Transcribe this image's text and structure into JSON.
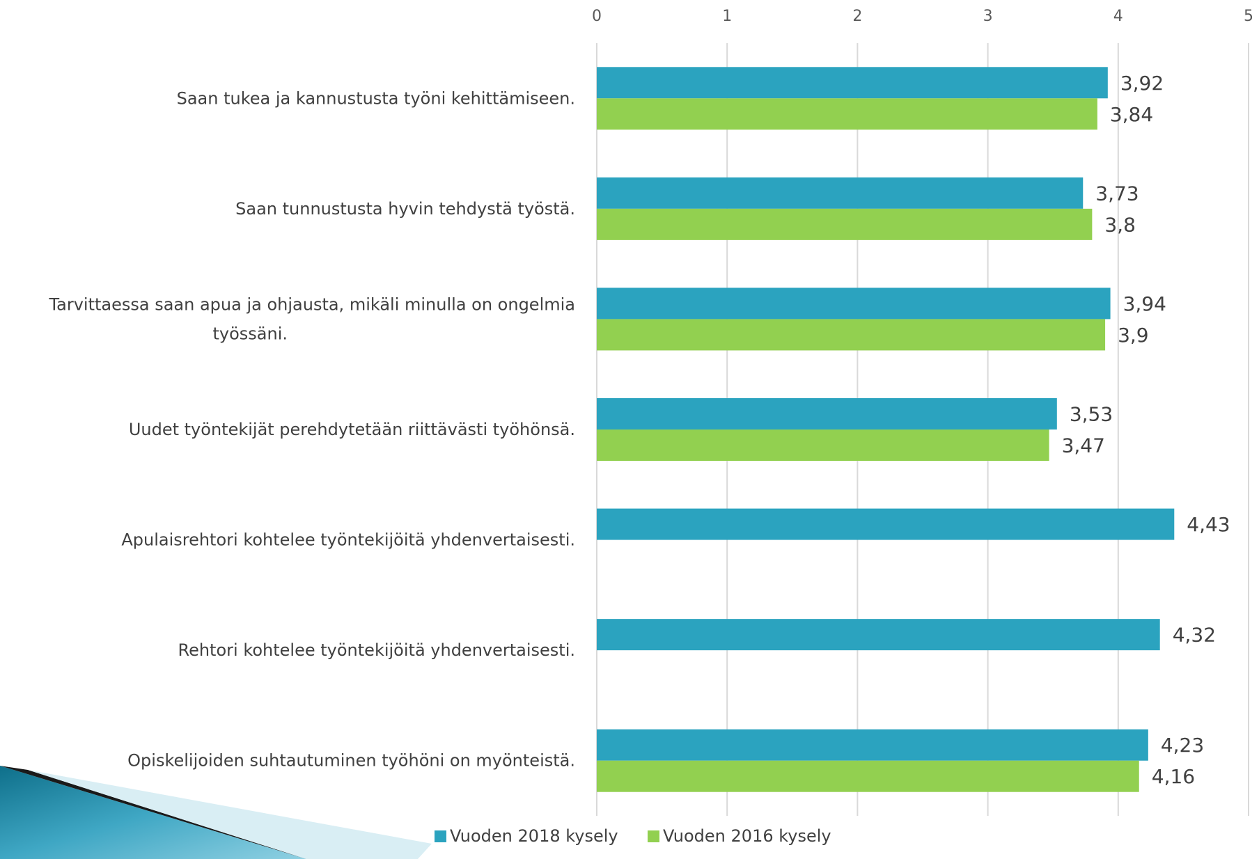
{
  "chart_data": {
    "type": "bar",
    "orientation": "horizontal",
    "title": "",
    "xlim": [
      0,
      5
    ],
    "xticks": [
      "0",
      "1",
      "2",
      "3",
      "4",
      "5"
    ],
    "grid": true,
    "legend_position": "bottom",
    "categories": [
      "Saan tukea ja kannustusta työni kehittämiseen.",
      "Saan tunnustusta hyvin tehdystä työstä.",
      "Tarvittaessa saan apua ja ohjausta, mikäli minulla on ongelmia työssäni.",
      "Uudet työntekijät perehdytetään riittävästi työhönsä.",
      "Apulaisrehtori kohtelee työntekijöitä yhdenvertaisesti.",
      "Rehtori kohtelee työntekijöitä yhdenvertaisesti.",
      "Opiskelijoiden suhtautuminen työhöni on myönteistä."
    ],
    "category_lines": [
      [
        "Saan tukea ja kannustusta työni kehittämiseen."
      ],
      [
        "Saan tunnustusta hyvin tehdystä työstä."
      ],
      [
        "Tarvittaessa saan apua ja ohjausta, mikäli minulla on ongelmia",
        "työssäni."
      ],
      [
        "Uudet työntekijät perehdytetään riittävästi työhönsä."
      ],
      [
        "Apulaisrehtori kohtelee työntekijöitä yhdenvertaisesti."
      ],
      [
        "Rehtori kohtelee työntekijöitä yhdenvertaisesti."
      ],
      [
        "Opiskelijoiden suhtautuminen työhöni on myönteistä."
      ]
    ],
    "series": [
      {
        "name": "Vuoden 2018 kysely",
        "color": "#2ba3bf",
        "values": [
          3.92,
          3.73,
          3.94,
          3.53,
          4.43,
          4.32,
          4.23
        ],
        "labels": [
          "3,92",
          "3,73",
          "3,94",
          "3,53",
          "4,43",
          "4,32",
          "4,23"
        ]
      },
      {
        "name": "Vuoden 2016 kysely",
        "color": "#92d050",
        "values": [
          3.84,
          3.8,
          3.9,
          3.47,
          null,
          null,
          4.16
        ],
        "labels": [
          "3,84",
          "3,8",
          "3,9",
          "3,47",
          null,
          null,
          "4,16"
        ]
      }
    ]
  }
}
